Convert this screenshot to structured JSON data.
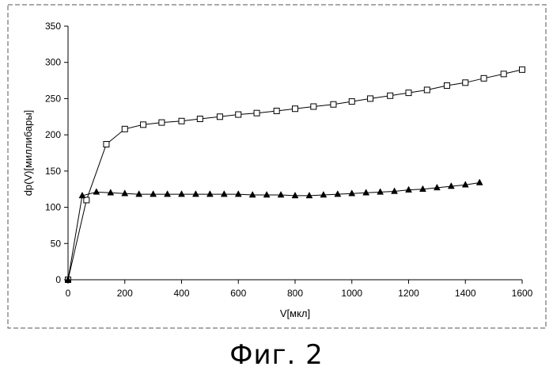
{
  "caption": "Фиг. 2",
  "chart_data": {
    "type": "line",
    "title": "",
    "xlabel": "V[мкл]",
    "ylabel": "dp(V)[миллибары]",
    "xlim": [
      0,
      1600
    ],
    "ylim": [
      0,
      350
    ],
    "xticks": [
      0,
      200,
      400,
      600,
      800,
      1000,
      1200,
      1400,
      1600
    ],
    "yticks": [
      0,
      50,
      100,
      150,
      200,
      250,
      300,
      350
    ],
    "grid": false,
    "legend": "none",
    "series": [
      {
        "marker": "square-open",
        "color": "#000000",
        "x": [
          0,
          65,
          135,
          200,
          265,
          330,
          400,
          465,
          535,
          600,
          665,
          735,
          800,
          865,
          935,
          1000,
          1065,
          1135,
          1200,
          1265,
          1335,
          1400,
          1465,
          1535,
          1600
        ],
        "y": [
          0,
          110,
          187,
          208,
          214,
          217,
          219,
          222,
          225,
          228,
          230,
          233,
          236,
          239,
          242,
          246,
          250,
          254,
          258,
          262,
          268,
          272,
          278,
          284,
          290
        ]
      },
      {
        "marker": "triangle-filled",
        "color": "#000000",
        "x": [
          0,
          50,
          100,
          150,
          200,
          250,
          300,
          350,
          400,
          450,
          500,
          550,
          600,
          650,
          700,
          750,
          800,
          850,
          900,
          950,
          1000,
          1050,
          1100,
          1150,
          1200,
          1250,
          1300,
          1350,
          1400,
          1450
        ],
        "y": [
          0,
          116,
          121,
          120,
          119,
          118,
          118,
          118,
          118,
          118,
          118,
          118,
          118,
          117,
          117,
          117,
          116,
          116,
          117,
          118,
          119,
          120,
          121,
          122,
          124,
          125,
          127,
          129,
          131,
          134
        ]
      }
    ]
  }
}
